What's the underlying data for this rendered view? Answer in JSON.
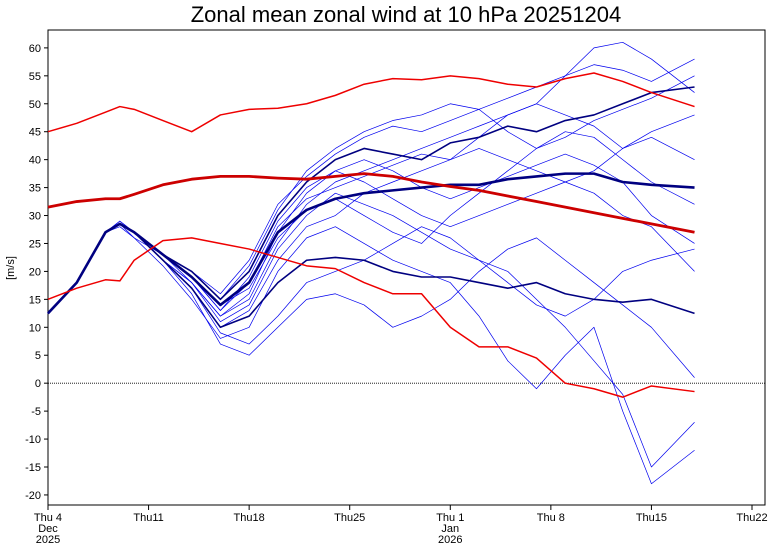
{
  "chart_data": {
    "type": "line",
    "title": "Zonal mean zonal wind at 10 hPa 20251204",
    "y_label": "[m/s]",
    "xlim": [
      0,
      49
    ],
    "ylim": [
      -21.8,
      63.2
    ],
    "xticks": [
      {
        "value": 0,
        "label": [
          "Thu 4",
          "Dec",
          "2025"
        ]
      },
      {
        "value": 7,
        "label": [
          "Thu11"
        ]
      },
      {
        "value": 14,
        "label": [
          "Thu18"
        ]
      },
      {
        "value": 21,
        "label": [
          "Thu25"
        ]
      },
      {
        "value": 28,
        "label": [
          "Thu 1",
          "Jan",
          "2026"
        ]
      },
      {
        "value": 35,
        "label": [
          "Thu 8"
        ]
      },
      {
        "value": 42,
        "label": [
          "Thu15"
        ]
      },
      {
        "value": 49,
        "label": [
          "Thu22"
        ]
      }
    ],
    "yticks": [
      -20,
      -15,
      -10,
      -5,
      0,
      5,
      10,
      15,
      20,
      25,
      30,
      35,
      40,
      45,
      50,
      55,
      60
    ],
    "zero_line": true,
    "x": [
      0,
      2,
      4,
      5,
      6,
      8,
      10,
      12,
      14,
      16,
      18,
      20,
      22,
      24,
      26,
      28,
      30,
      32,
      34,
      36,
      38,
      40,
      42,
      45
    ],
    "series": [
      {
        "color": "#0000ee",
        "linewidth": 0.7,
        "values": [
          12.5,
          18,
          27,
          29,
          27,
          22,
          18,
          12,
          15,
          25,
          32,
          36,
          38,
          40,
          42,
          44,
          46,
          48,
          50,
          55,
          60,
          61,
          58,
          52
        ]
      },
      {
        "color": "#0000ee",
        "linewidth": 0.7,
        "values": [
          12.5,
          18,
          27,
          28,
          26,
          21,
          15,
          8,
          10,
          20,
          26,
          28,
          25,
          22,
          20,
          18,
          12,
          4,
          -1,
          5,
          10,
          -5,
          -18,
          -12
        ]
      },
      {
        "color": "#0000ee",
        "linewidth": 0.7,
        "values": [
          12.5,
          18,
          27,
          28.5,
          27,
          23,
          19,
          13,
          18,
          28,
          33,
          35,
          37,
          39,
          41,
          40,
          44,
          48,
          50,
          48,
          46,
          42,
          44,
          40
        ]
      },
      {
        "color": "#0000ee",
        "linewidth": 0.7,
        "values": [
          12.5,
          18,
          27,
          28.5,
          27,
          22,
          18,
          11,
          14,
          24,
          30,
          34,
          32,
          30,
          27,
          24,
          22,
          20,
          15,
          10,
          4,
          -2,
          -15,
          -7
        ]
      },
      {
        "color": "#0000ee",
        "linewidth": 0.7,
        "values": [
          12.5,
          18,
          27,
          28.5,
          26,
          23,
          20,
          16,
          22,
          32,
          37,
          41,
          44,
          46,
          45,
          47,
          49,
          51,
          53,
          55,
          57,
          56,
          54,
          58
        ]
      },
      {
        "color": "#0000ee",
        "linewidth": 0.7,
        "values": [
          12.5,
          18,
          27,
          28.5,
          27,
          22,
          17,
          9,
          7,
          12,
          18,
          20,
          22,
          25,
          28,
          26,
          22,
          18,
          14,
          12,
          15,
          20,
          22,
          24
        ]
      },
      {
        "color": "#0000ee",
        "linewidth": 0.7,
        "values": [
          12.5,
          18,
          27,
          29,
          27,
          23,
          19,
          14,
          17,
          26,
          31,
          33,
          30,
          27,
          25,
          30,
          34,
          38,
          42,
          45,
          44,
          40,
          36,
          32
        ]
      },
      {
        "color": "#0000ee",
        "linewidth": 0.7,
        "values": [
          12.5,
          18,
          27,
          28.5,
          27,
          22,
          16,
          7,
          5,
          10,
          15,
          16,
          14,
          10,
          12,
          15,
          20,
          24,
          26,
          22,
          18,
          14,
          10,
          1
        ]
      },
      {
        "color": "#0000ee",
        "linewidth": 0.7,
        "values": [
          12.5,
          18,
          27,
          28.5,
          27,
          23,
          20,
          15,
          21,
          31,
          38,
          42,
          45,
          47,
          48,
          50,
          49,
          45,
          42,
          44,
          47,
          49,
          51,
          55
        ]
      },
      {
        "color": "#0000ee",
        "linewidth": 0.7,
        "values": [
          12.5,
          18,
          27,
          28.5,
          27,
          23,
          18,
          12,
          16,
          27,
          34,
          38,
          40,
          38,
          35,
          33,
          35,
          37,
          39,
          41,
          39,
          36,
          30,
          25
        ]
      },
      {
        "color": "#0000ee",
        "linewidth": 0.7,
        "values": [
          12.5,
          18,
          27,
          28.5,
          27,
          22,
          17,
          10,
          13,
          22,
          28,
          30,
          34,
          36,
          38,
          40,
          42,
          40,
          38,
          36,
          34,
          30,
          28,
          20
        ]
      },
      {
        "color": "#0000ee",
        "linewidth": 0.7,
        "values": [
          12.5,
          18,
          27,
          28.5,
          27,
          23,
          19,
          13,
          19,
          29,
          35,
          38,
          36,
          33,
          30,
          28,
          30,
          32,
          34,
          36,
          38,
          42,
          45,
          48
        ]
      },
      {
        "color": "#000080",
        "linewidth": 1.6,
        "values": [
          12.5,
          18,
          27,
          28.5,
          27,
          23,
          20,
          15,
          20,
          30,
          36,
          40,
          42,
          41,
          40,
          43,
          44,
          46,
          45,
          47,
          48,
          50,
          52,
          53
        ]
      },
      {
        "color": "#000080",
        "linewidth": 1.6,
        "values": [
          12.5,
          18,
          27,
          28.5,
          27,
          22,
          17,
          10,
          12,
          18,
          22,
          22.5,
          22,
          20,
          19,
          19,
          18,
          17,
          18,
          16,
          15,
          14.5,
          15,
          12.5
        ]
      },
      {
        "color": "#000080",
        "linewidth": 2.6,
        "values": [
          12.5,
          18,
          27,
          28.5,
          27,
          23,
          19,
          14,
          18,
          27,
          31,
          33,
          34,
          34.5,
          35,
          35.5,
          35.5,
          36.5,
          37,
          37.5,
          37.5,
          36,
          35.5,
          35
        ]
      },
      {
        "color": "#ee0000",
        "linewidth": 1.5,
        "values": [
          45,
          46.5,
          48.5,
          49.5,
          49,
          47,
          45,
          48,
          49,
          49.2,
          50,
          51.5,
          53.5,
          54.5,
          54.3,
          55,
          54.5,
          53.5,
          53,
          54.5,
          55.5,
          54,
          52,
          49.5
        ]
      },
      {
        "color": "#cc0000",
        "linewidth": 2.8,
        "values": [
          31.5,
          32.5,
          33,
          33,
          33.8,
          35.5,
          36.5,
          37,
          37,
          36.7,
          36.5,
          37,
          37.5,
          37,
          36,
          35.2,
          34.5,
          33.5,
          32.5,
          31.5,
          30.5,
          29.5,
          28.5,
          27
        ]
      },
      {
        "color": "#ee0000",
        "linewidth": 1.5,
        "values": [
          15,
          17,
          18.5,
          18.3,
          22,
          25.5,
          26,
          25,
          24,
          22.5,
          21,
          20.5,
          18,
          16,
          16,
          10,
          6.5,
          6.5,
          4.5,
          0,
          -1,
          -2.5,
          -0.5,
          -1.5
        ]
      }
    ]
  }
}
